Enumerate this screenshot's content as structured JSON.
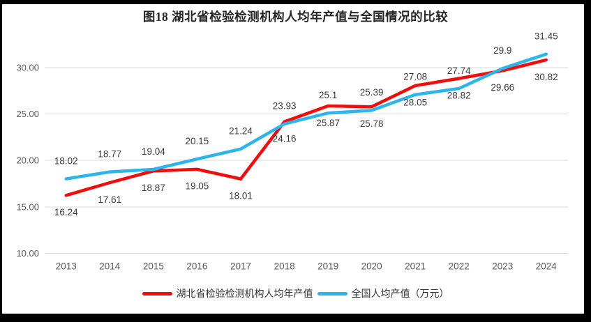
{
  "colors": {
    "hubei_line": "#EE0E0E",
    "national_line": "#2DB5EA",
    "gridline": "#D9D9D9",
    "axis_tick_text": "#595959",
    "data_label_text": "#3A3A3A",
    "title_text": "#262626",
    "legend_text": "#333333",
    "frame_border": "#000000",
    "background": "#FFFFFF"
  },
  "chart_data": {
    "type": "line",
    "title": "图18 湖北省检验检测机构人均年产值与全国情况的比较",
    "categories": [
      "2013",
      "2014",
      "2015",
      "2016",
      "2017",
      "2018",
      "2019",
      "2020",
      "2021",
      "2022",
      "2023",
      "2024"
    ],
    "series": [
      {
        "name": "湖北省检验检测机构人均年产值",
        "color_key": "hubei_line",
        "label_position": "below",
        "values": [
          16.24,
          17.61,
          18.87,
          19.05,
          18.01,
          24.16,
          25.87,
          25.78,
          28.05,
          28.82,
          29.66,
          30.82
        ],
        "labels": [
          "16.24",
          "17.61",
          "18.87",
          "19.05",
          "18.01",
          "24.16",
          "25.87",
          "25.78",
          "28.05",
          "28.82",
          "29.66",
          "30.82"
        ]
      },
      {
        "name": "全国人均产值（万元）",
        "color_key": "national_line",
        "label_position": "above",
        "values": [
          18.02,
          18.77,
          19.04,
          20.15,
          21.24,
          23.93,
          25.1,
          25.39,
          27.08,
          27.74,
          29.9,
          31.45
        ],
        "labels": [
          "18.02",
          "18.77",
          "19.04",
          "20.15",
          "21.24",
          "23.93",
          "25.1",
          "25.39",
          "27.08",
          "27.74",
          "29.9",
          "31.45"
        ]
      }
    ],
    "y_axis": {
      "min": 10,
      "max": 32.5,
      "ticks": [
        30,
        25,
        20,
        15,
        10
      ],
      "tick_labels": [
        "30.00",
        "25.00",
        "20.00",
        "15.00",
        "10.00"
      ]
    },
    "grid": "horizontal-only",
    "legend_position": "bottom"
  }
}
